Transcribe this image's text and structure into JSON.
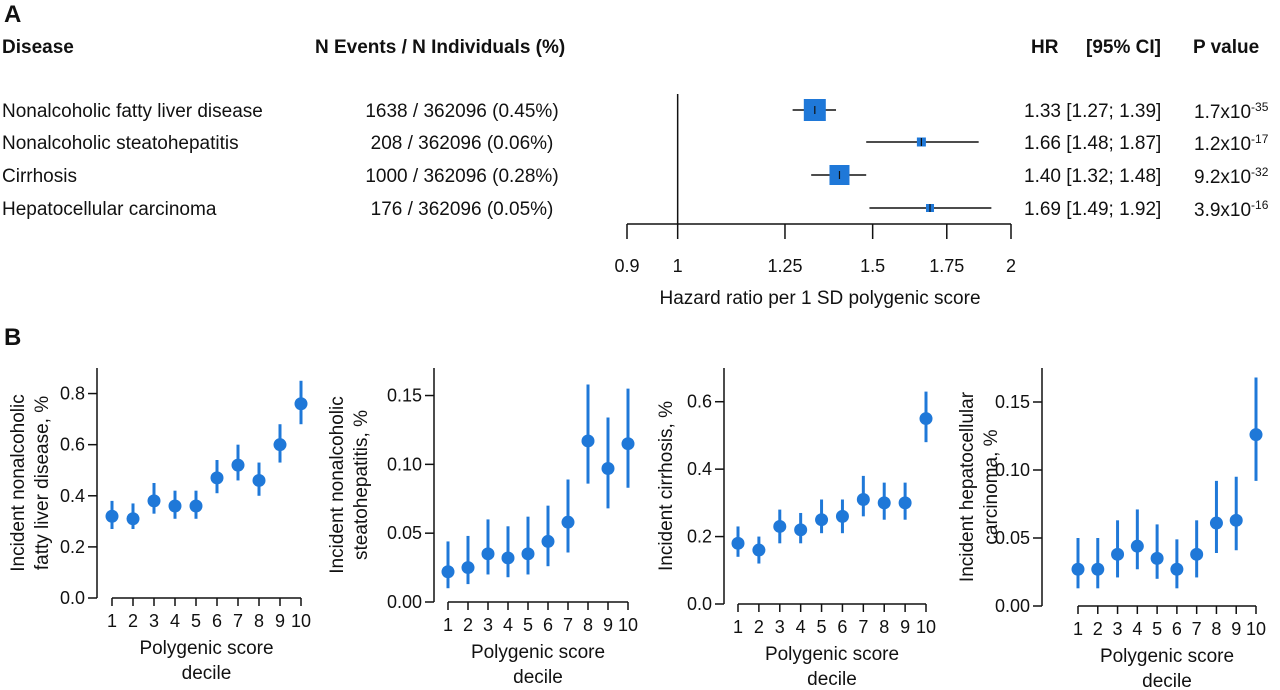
{
  "panels": {
    "a": "A",
    "b": "B"
  },
  "chart_data": [
    {
      "type": "table",
      "subtype": "forest",
      "headers": {
        "disease": "Disease",
        "events": "N Events / N Individuals (%)",
        "hr": "HR",
        "ci": "[95% CI]",
        "p": "P value"
      },
      "rows": [
        {
          "disease": "Nonalcoholic fatty liver disease",
          "events": "1638 / 362096 (0.45%)",
          "hr": 1.33,
          "lo": 1.27,
          "hi": 1.39,
          "hr_text": "1.33 [1.27; 1.39]",
          "p_mant": "1.7x10",
          "p_exp": "-35"
        },
        {
          "disease": "Nonalcoholic steatohepatitis",
          "events": "208 / 362096 (0.06%)",
          "hr": 1.66,
          "lo": 1.48,
          "hi": 1.87,
          "hr_text": "1.66 [1.48; 1.87]",
          "p_mant": "1.2x10",
          "p_exp": "-17"
        },
        {
          "disease": "Cirrhosis",
          "events": "1000 / 362096 (0.28%)",
          "hr": 1.4,
          "lo": 1.32,
          "hi": 1.48,
          "hr_text": "1.40 [1.32; 1.48]",
          "p_mant": "9.2x10",
          "p_exp": "-32"
        },
        {
          "disease": "Hepatocellular carcinoma",
          "events": "176 / 362096 (0.05%)",
          "hr": 1.69,
          "lo": 1.49,
          "hi": 1.92,
          "hr_text": "1.69 [1.49; 1.92]",
          "p_mant": "3.9x10",
          "p_exp": "-16"
        }
      ],
      "xlabel": "Hazard ratio per 1 SD polygenic score",
      "xscale": "log",
      "xlim": [
        0.9,
        2
      ],
      "xticks": [
        0.9,
        1,
        1.25,
        1.5,
        1.75,
        2
      ],
      "xtick_labels": [
        "0.9",
        "1",
        "1.25",
        "1.5",
        "1.75",
        "2"
      ],
      "reference_line": 1,
      "marker_color": "#1f78d8"
    },
    {
      "type": "scatter",
      "ylabel": [
        "Incident nonalcoholic",
        "fatty liver disease, %"
      ],
      "xlabel": [
        "Polygenic score",
        "decile"
      ],
      "x": [
        1,
        2,
        3,
        4,
        5,
        6,
        7,
        8,
        9,
        10
      ],
      "y": [
        0.32,
        0.31,
        0.38,
        0.36,
        0.36,
        0.47,
        0.52,
        0.46,
        0.6,
        0.76
      ],
      "lo": [
        0.27,
        0.27,
        0.33,
        0.31,
        0.31,
        0.41,
        0.46,
        0.4,
        0.53,
        0.68
      ],
      "hi": [
        0.38,
        0.37,
        0.45,
        0.42,
        0.42,
        0.54,
        0.6,
        0.53,
        0.68,
        0.85
      ],
      "ylim": [
        0,
        0.9
      ],
      "yticks": [
        0.0,
        0.2,
        0.4,
        0.6,
        0.8
      ],
      "ytick_labels": [
        "0.0",
        "0.2",
        "0.4",
        "0.6",
        "0.8"
      ],
      "xtick_labels": [
        "1",
        "2",
        "3",
        "4",
        "5",
        "6",
        "7",
        "8",
        "9",
        "10"
      ],
      "color": "#1f78d8"
    },
    {
      "type": "scatter",
      "ylabel": [
        "Incident nonalcoholic",
        "steatohepatitis, %"
      ],
      "xlabel": [
        "Polygenic score",
        "decile"
      ],
      "x": [
        1,
        2,
        3,
        4,
        5,
        6,
        7,
        8,
        9,
        10
      ],
      "y": [
        0.022,
        0.025,
        0.035,
        0.032,
        0.035,
        0.044,
        0.058,
        0.117,
        0.097,
        0.115
      ],
      "lo": [
        0.01,
        0.013,
        0.02,
        0.018,
        0.02,
        0.026,
        0.036,
        0.086,
        0.068,
        0.083
      ],
      "hi": [
        0.044,
        0.048,
        0.06,
        0.055,
        0.062,
        0.07,
        0.089,
        0.158,
        0.134,
        0.155
      ],
      "ylim": [
        0,
        0.17
      ],
      "yticks": [
        0.0,
        0.05,
        0.1,
        0.15
      ],
      "ytick_labels": [
        "0.00",
        "0.05",
        "0.10",
        "0.15"
      ],
      "xtick_labels": [
        "1",
        "2",
        "3",
        "4",
        "5",
        "6",
        "7",
        "8",
        "9",
        "10"
      ],
      "color": "#1f78d8"
    },
    {
      "type": "scatter",
      "ylabel": [
        "Incident cirrhosis, %"
      ],
      "xlabel": [
        "Polygenic score",
        "decile"
      ],
      "x": [
        1,
        2,
        3,
        4,
        5,
        6,
        7,
        8,
        9,
        10
      ],
      "y": [
        0.18,
        0.16,
        0.23,
        0.22,
        0.25,
        0.26,
        0.31,
        0.3,
        0.3,
        0.55
      ],
      "lo": [
        0.14,
        0.12,
        0.18,
        0.18,
        0.21,
        0.21,
        0.26,
        0.25,
        0.25,
        0.48
      ],
      "hi": [
        0.23,
        0.2,
        0.28,
        0.27,
        0.31,
        0.31,
        0.38,
        0.36,
        0.36,
        0.63
      ],
      "ylim": [
        0,
        0.7
      ],
      "yticks": [
        0.0,
        0.2,
        0.4,
        0.6
      ],
      "ytick_labels": [
        "0.0",
        "0.2",
        "0.4",
        "0.6"
      ],
      "xtick_labels": [
        "1",
        "2",
        "3",
        "4",
        "5",
        "6",
        "7",
        "8",
        "9",
        "10"
      ],
      "color": "#1f78d8"
    },
    {
      "type": "scatter",
      "ylabel": [
        "Incident hepatocellular",
        "carcinoma, %"
      ],
      "xlabel": [
        "Polygenic score",
        "decile"
      ],
      "x": [
        1,
        2,
        3,
        4,
        5,
        6,
        7,
        8,
        9,
        10
      ],
      "y": [
        0.027,
        0.027,
        0.038,
        0.044,
        0.035,
        0.027,
        0.038,
        0.061,
        0.063,
        0.126
      ],
      "lo": [
        0.013,
        0.013,
        0.021,
        0.027,
        0.02,
        0.013,
        0.021,
        0.039,
        0.041,
        0.092
      ],
      "hi": [
        0.05,
        0.05,
        0.063,
        0.071,
        0.06,
        0.049,
        0.063,
        0.092,
        0.095,
        0.168
      ],
      "ylim": [
        0,
        0.175
      ],
      "yticks": [
        0.0,
        0.05,
        0.1,
        0.15
      ],
      "ytick_labels": [
        "0.00",
        "0.05",
        "0.10",
        "0.15"
      ],
      "xtick_labels": [
        "1",
        "2",
        "3",
        "4",
        "5",
        "6",
        "7",
        "8",
        "9",
        "10"
      ],
      "color": "#1f78d8"
    }
  ]
}
